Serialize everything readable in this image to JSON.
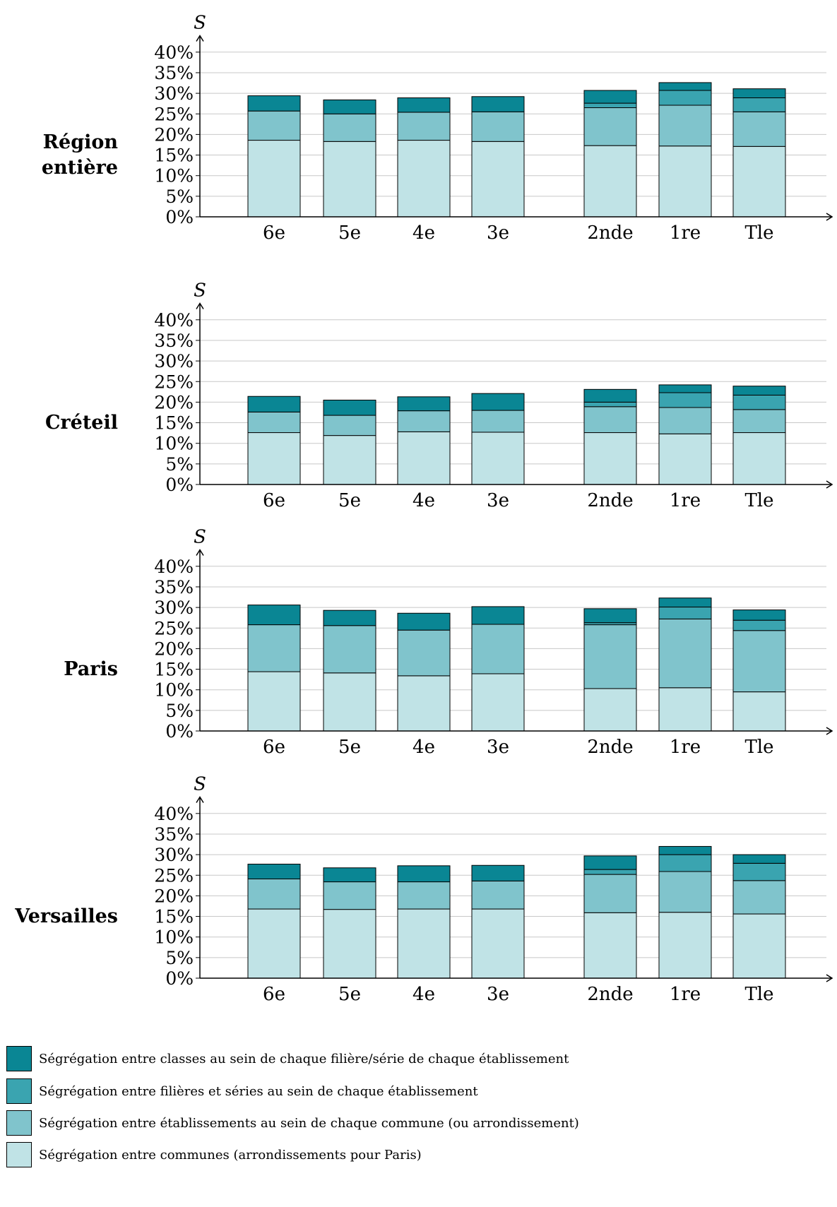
{
  "chart_data": [
    {
      "type": "bar",
      "stacked": true,
      "title": "Région entière",
      "y_label": "S",
      "categories": [
        "6e",
        "5e",
        "4e",
        "3e",
        "2nde",
        "1re",
        "Tle"
      ],
      "ylim": [
        0,
        44
      ],
      "grid": true,
      "yticks": [
        {
          "value": 0,
          "label": "0%"
        },
        {
          "value": 5,
          "label": "5%"
        },
        {
          "value": 10,
          "label": "10%"
        },
        {
          "value": 15,
          "label": "15%"
        },
        {
          "value": 20,
          "label": "20%"
        },
        {
          "value": 25,
          "label": "25%"
        },
        {
          "value": 30,
          "label": "30%"
        },
        {
          "value": 35,
          "label": "35%"
        },
        {
          "value": 40,
          "label": "40%"
        }
      ],
      "series": [
        {
          "name": "Ségrégation entre communes (arrondissements pour Paris)",
          "color": "#c0e3e6",
          "values": [
            18.6,
            18.3,
            18.6,
            18.3,
            17.3,
            17.2,
            17.1
          ]
        },
        {
          "name": "Ségrégation entre établissements au sein de chaque commune (ou arrondissement)",
          "color": "#80c4cc",
          "values": [
            7.1,
            6.7,
            6.8,
            7.2,
            9.2,
            9.9,
            8.4
          ]
        },
        {
          "name": "Ségrégation entre filières et séries au sein de chaque établissement",
          "color": "#3aa4b0",
          "values": [
            0,
            0,
            0,
            0,
            1.1,
            3.6,
            3.4
          ]
        },
        {
          "name": "Ségrégation entre classes au sein de chaque filière/série de chaque établissement",
          "color": "#0a8694",
          "values": [
            3.7,
            3.4,
            3.5,
            3.7,
            3.1,
            1.9,
            2.2
          ]
        }
      ]
    },
    {
      "type": "bar",
      "stacked": true,
      "title": "Créteil",
      "y_label": "S",
      "categories": [
        "6e",
        "5e",
        "4e",
        "3e",
        "2nde",
        "1re",
        "Tle"
      ],
      "ylim": [
        0,
        44
      ],
      "grid": true,
      "yticks": [
        {
          "value": 0,
          "label": "0%"
        },
        {
          "value": 5,
          "label": "5%"
        },
        {
          "value": 10,
          "label": "10%"
        },
        {
          "value": 15,
          "label": "15%"
        },
        {
          "value": 20,
          "label": "20%"
        },
        {
          "value": 25,
          "label": "25%"
        },
        {
          "value": 30,
          "label": "30%"
        },
        {
          "value": 35,
          "label": "35%"
        },
        {
          "value": 40,
          "label": "40%"
        }
      ],
      "series": [
        {
          "color": "#c0e3e6",
          "values": [
            12.6,
            11.9,
            12.8,
            12.7,
            12.6,
            12.3,
            12.6
          ]
        },
        {
          "color": "#80c4cc",
          "values": [
            5.0,
            4.9,
            5.1,
            5.3,
            6.3,
            6.4,
            5.6
          ]
        },
        {
          "color": "#3aa4b0",
          "values": [
            0,
            0,
            0,
            0,
            1.1,
            3.6,
            3.5
          ]
        },
        {
          "color": "#0a8694",
          "values": [
            3.8,
            3.7,
            3.4,
            4.1,
            3.1,
            1.9,
            2.2
          ]
        }
      ]
    },
    {
      "type": "bar",
      "stacked": true,
      "title": "Paris",
      "y_label": "S",
      "categories": [
        "6e",
        "5e",
        "4e",
        "3e",
        "2nde",
        "1re",
        "Tle"
      ],
      "ylim": [
        0,
        44
      ],
      "grid": true,
      "yticks": [
        {
          "value": 0,
          "label": "0%"
        },
        {
          "value": 5,
          "label": "5%"
        },
        {
          "value": 10,
          "label": "10%"
        },
        {
          "value": 15,
          "label": "15%"
        },
        {
          "value": 20,
          "label": "20%"
        },
        {
          "value": 25,
          "label": "25%"
        },
        {
          "value": 30,
          "label": "30%"
        },
        {
          "value": 35,
          "label": "35%"
        },
        {
          "value": 40,
          "label": "40%"
        }
      ],
      "series": [
        {
          "color": "#c0e3e6",
          "values": [
            14.4,
            14.1,
            13.4,
            13.9,
            10.3,
            10.5,
            9.5
          ]
        },
        {
          "color": "#80c4cc",
          "values": [
            11.4,
            11.5,
            11.1,
            12.0,
            15.5,
            16.7,
            14.9
          ]
        },
        {
          "color": "#3aa4b0",
          "values": [
            0,
            0,
            0,
            0,
            0.5,
            2.9,
            2.5
          ]
        },
        {
          "color": "#0a8694",
          "values": [
            4.8,
            3.7,
            4.1,
            4.3,
            3.4,
            2.2,
            2.5
          ]
        }
      ]
    },
    {
      "type": "bar",
      "stacked": true,
      "title": "Versailles",
      "y_label": "S",
      "categories": [
        "6e",
        "5e",
        "4e",
        "3e",
        "2nde",
        "1re",
        "Tle"
      ],
      "ylim": [
        0,
        44
      ],
      "grid": true,
      "yticks": [
        {
          "value": 0,
          "label": "0%"
        },
        {
          "value": 5,
          "label": "5%"
        },
        {
          "value": 10,
          "label": "10%"
        },
        {
          "value": 15,
          "label": "15%"
        },
        {
          "value": 20,
          "label": "20%"
        },
        {
          "value": 25,
          "label": "25%"
        },
        {
          "value": 30,
          "label": "30%"
        },
        {
          "value": 35,
          "label": "35%"
        },
        {
          "value": 40,
          "label": "40%"
        }
      ],
      "series": [
        {
          "color": "#c0e3e6",
          "values": [
            16.8,
            16.7,
            16.8,
            16.8,
            15.9,
            16.0,
            15.6
          ]
        },
        {
          "color": "#80c4cc",
          "values": [
            7.3,
            6.7,
            6.6,
            6.8,
            9.3,
            9.9,
            8.1
          ]
        },
        {
          "color": "#3aa4b0",
          "values": [
            0,
            0,
            0,
            0,
            1.2,
            4.1,
            4.2
          ]
        },
        {
          "color": "#0a8694",
          "values": [
            3.6,
            3.4,
            3.9,
            3.8,
            3.3,
            2.0,
            2.1
          ]
        }
      ]
    }
  ]
}
